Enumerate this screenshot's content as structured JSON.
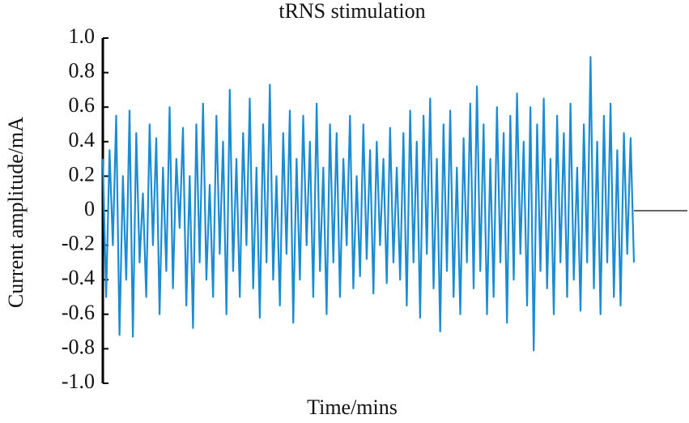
{
  "chart_data": {
    "type": "line",
    "title": "tRNS stimulation",
    "x_label": "Time/mins",
    "y_label": "Current amplitude/mA",
    "series": [
      {
        "color": "#1b8bd2",
        "values": [
          0.3,
          -0.5,
          0.35,
          -0.2,
          0.55,
          -0.72,
          0.2,
          -0.4,
          0.58,
          -0.73,
          0.45,
          -0.3,
          0.1,
          -0.5,
          0.5,
          -0.2,
          0.42,
          -0.6,
          0.25,
          -0.35,
          0.6,
          -0.45,
          0.3,
          -0.1,
          0.48,
          -0.55,
          0.2,
          -0.68,
          0.5,
          -0.3,
          0.62,
          -0.4,
          0.15,
          -0.5,
          0.55,
          -0.25,
          0.4,
          -0.6,
          0.7,
          -0.35,
          0.3,
          -0.5,
          0.45,
          -0.2,
          0.65,
          -0.45,
          0.25,
          -0.62,
          0.5,
          -0.3,
          0.73,
          -0.4,
          0.2,
          -0.55,
          0.45,
          -0.25,
          0.58,
          -0.65,
          0.3,
          -0.4,
          0.55,
          -0.2,
          0.4,
          -0.5,
          0.62,
          -0.35,
          0.25,
          -0.6,
          0.5,
          -0.3,
          0.45,
          -0.5,
          0.3,
          -0.2,
          0.55,
          -0.45,
          0.2,
          -0.38,
          0.5,
          -0.28,
          0.35,
          -0.48,
          0.4,
          -0.2,
          0.3,
          -0.42,
          0.48,
          -0.3,
          0.25,
          -0.4,
          0.45,
          -0.55,
          0.58,
          -0.3,
          0.4,
          -0.62,
          0.55,
          -0.25,
          0.65,
          -0.45,
          0.3,
          -0.7,
          0.5,
          -0.35,
          0.58,
          -0.5,
          0.25,
          -0.6,
          0.42,
          -0.3,
          0.62,
          -0.45,
          0.72,
          -0.35,
          0.5,
          -0.6,
          0.3,
          -0.5,
          0.6,
          -0.3,
          0.45,
          -0.65,
          0.55,
          -0.4,
          0.68,
          -0.25,
          0.4,
          -0.55,
          0.6,
          -0.81,
          0.5,
          -0.35,
          0.65,
          -0.45,
          0.3,
          -0.6,
          0.55,
          -0.3,
          0.45,
          -0.5,
          0.62,
          -0.4,
          0.25,
          -0.58,
          0.5,
          -0.3,
          0.89,
          -0.45,
          0.4,
          -0.6,
          0.55,
          -0.3,
          0.62,
          -0.5,
          0.35,
          -0.55,
          0.45,
          -0.25,
          0.42,
          -0.3
        ]
      }
    ],
    "ylim": [
      -1.0,
      1.0
    ],
    "yticks": [
      {
        "value": 1.0,
        "label": "1.0"
      },
      0.8,
      0.6,
      0.4,
      0.2,
      0,
      -0.2,
      -0.4,
      -0.6,
      -0.8,
      {
        "value": -1.0,
        "label": "-1.0"
      }
    ]
  }
}
